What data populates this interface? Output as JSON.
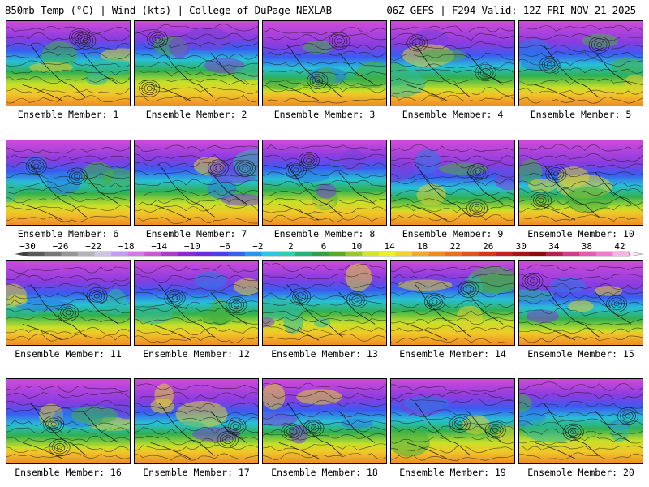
{
  "header": {
    "left": "850mb Temp (°C) | Wind (kts) | College of DuPage NEXLAB",
    "right": "06Z GEFS | F294 Valid: 12Z FRI NOV 21 2025"
  },
  "panels": [
    {
      "label": "Ensemble Member: 1"
    },
    {
      "label": "Ensemble Member: 2"
    },
    {
      "label": "Ensemble Member: 3"
    },
    {
      "label": "Ensemble Member: 4"
    },
    {
      "label": "Ensemble Member: 5"
    },
    {
      "label": "Ensemble Member: 6"
    },
    {
      "label": "Ensemble Member: 7"
    },
    {
      "label": "Ensemble Member: 8"
    },
    {
      "label": "Ensemble Member: 9"
    },
    {
      "label": "Ensemble Member: 10"
    },
    {
      "label": "Ensemble Member: 11"
    },
    {
      "label": "Ensemble Member: 12"
    },
    {
      "label": "Ensemble Member: 13"
    },
    {
      "label": "Ensemble Member: 14"
    },
    {
      "label": "Ensemble Member: 15"
    },
    {
      "label": "Ensemble Member: 16"
    },
    {
      "label": "Ensemble Member: 17"
    },
    {
      "label": "Ensemble Member: 18"
    },
    {
      "label": "Ensemble Member: 19"
    },
    {
      "label": "Ensemble Member: 20"
    }
  ],
  "colorbar": {
    "tick_labels": [
      "−30",
      "−26",
      "−22",
      "−18",
      "−14",
      "−10",
      "−6",
      "−2",
      "2",
      "6",
      "10",
      "14",
      "18",
      "22",
      "26",
      "30",
      "34",
      "38",
      "42"
    ],
    "colors": [
      "#5a5a5a",
      "#787878",
      "#969696",
      "#b4b4b4",
      "#cfc3e6",
      "#c89bf0",
      "#d27ae6",
      "#c85ad2",
      "#aa3cc8",
      "#8c28d2",
      "#6e28e6",
      "#503cf0",
      "#3264f0",
      "#2896f0",
      "#28c8e6",
      "#28d2b4",
      "#28b478",
      "#32a046",
      "#5aaa28",
      "#96c828",
      "#d2e628",
      "#f0f028",
      "#f0d228",
      "#f0aa28",
      "#f08c1e",
      "#eb6e1e",
      "#e6501e",
      "#dc321e",
      "#c81e1e",
      "#aa1414",
      "#8c0a0a",
      "#b41e50",
      "#d23c8c",
      "#e65ab4",
      "#f07ad2",
      "#f8b4e6"
    ]
  }
}
